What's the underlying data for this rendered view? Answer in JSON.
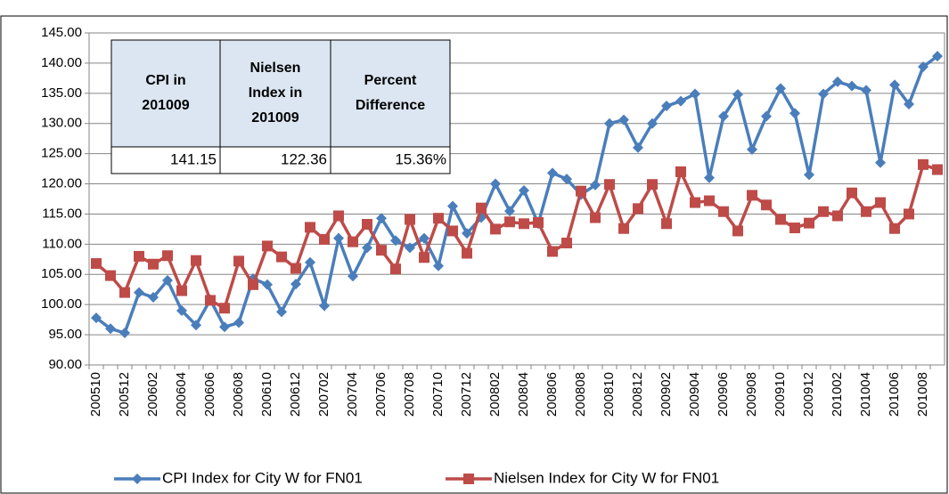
{
  "chart_data": {
    "type": "line",
    "categories": [
      "200510",
      null,
      "200512",
      null,
      "200602",
      null,
      "200604",
      null,
      "200606",
      null,
      "200608",
      null,
      "200610",
      null,
      "200612",
      null,
      "200702",
      null,
      "200704",
      null,
      "200706",
      null,
      "200708",
      null,
      "200710",
      null,
      "200712",
      null,
      "200802",
      null,
      "200804",
      null,
      "200806",
      null,
      "200808",
      null,
      "200810",
      null,
      "200812",
      null,
      "200902",
      null,
      "200904",
      null,
      "200906",
      null,
      "200908",
      null,
      "200910",
      null,
      "200912",
      null,
      "201002",
      null,
      "201004",
      null,
      "201006",
      null,
      "201008",
      null
    ],
    "series": [
      {
        "name": "CPI Index for City W for FN01",
        "color": "#4a7ebb",
        "marker": "diamond",
        "values": [
          97.8,
          96.0,
          95.3,
          102.0,
          101.2,
          104.0,
          99.0,
          96.6,
          100.8,
          96.3,
          97.0,
          104.3,
          103.3,
          98.8,
          103.4,
          107.0,
          99.8,
          111.0,
          104.7,
          109.4,
          114.3,
          110.6,
          109.4,
          111.0,
          106.4,
          116.3,
          111.8,
          114.4,
          120.0,
          115.5,
          118.9,
          113.4,
          121.8,
          120.8,
          118.2,
          119.8,
          130.0,
          130.6,
          126.0,
          130.0,
          132.9,
          133.7,
          134.9,
          121.0,
          131.2,
          134.8,
          125.7,
          131.2,
          135.8,
          131.7,
          121.5,
          134.9,
          136.9,
          136.2,
          135.5,
          123.5,
          136.4,
          133.2,
          139.4,
          141.15
        ]
      },
      {
        "name": "Nielsen Index for City W for FN01",
        "color": "#be4b48",
        "marker": "square",
        "values": [
          106.8,
          104.8,
          102.0,
          108.0,
          106.7,
          108.1,
          102.3,
          107.3,
          100.7,
          99.4,
          107.2,
          103.3,
          109.7,
          107.9,
          106.0,
          112.8,
          110.8,
          114.7,
          110.4,
          113.3,
          109.0,
          105.9,
          114.1,
          107.8,
          114.3,
          112.2,
          108.5,
          116.0,
          112.5,
          113.7,
          113.4,
          113.6,
          108.8,
          110.2,
          118.8,
          114.4,
          119.9,
          112.6,
          115.9,
          119.9,
          113.4,
          122.0,
          116.9,
          117.2,
          115.4,
          112.2,
          118.1,
          116.5,
          114.1,
          112.7,
          113.5,
          115.4,
          114.7,
          118.5,
          115.4,
          116.9,
          112.6,
          115.0,
          123.2,
          122.36
        ]
      }
    ],
    "ylim": [
      90,
      145
    ],
    "yticks": [
      {
        "value": 90,
        "label": "90.00"
      },
      {
        "value": 95,
        "label": "95.00"
      },
      {
        "value": 100,
        "label": "100.00"
      },
      {
        "value": 105,
        "label": "105.00"
      },
      {
        "value": 110,
        "label": "110.00"
      },
      {
        "value": 115,
        "label": "115.00"
      },
      {
        "value": 120,
        "label": "120.00"
      },
      {
        "value": 125,
        "label": "125.00"
      },
      {
        "value": 130,
        "label": "130.00"
      },
      {
        "value": 135,
        "label": "135.00"
      },
      {
        "value": 140,
        "label": "140.00"
      },
      {
        "value": 145,
        "label": "145.00"
      }
    ],
    "grid": true,
    "legend": "bottom",
    "table": {
      "header": [
        "CPI in 201009",
        "Nielsen Index in 201009",
        "Percent Difference"
      ],
      "rows": [
        [
          "141.15",
          "122.36",
          "15.36%"
        ]
      ]
    }
  }
}
